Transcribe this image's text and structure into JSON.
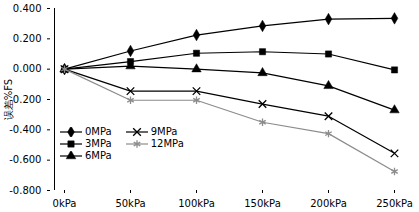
{
  "chart_data": {
    "type": "line",
    "y_label": "误差%FS",
    "categories": [
      "0kPa",
      "50kPa",
      "100kPa",
      "150kPa",
      "200kPa",
      "250kPa"
    ],
    "series": [
      {
        "name": "0MPa",
        "color": "#000000",
        "marker": "diamond",
        "values": [
          0,
          0.12,
          0.225,
          0.285,
          0.33,
          0.335
        ]
      },
      {
        "name": "3MPa",
        "color": "#000000",
        "marker": "square",
        "values": [
          0,
          0.05,
          0.105,
          0.115,
          0.1,
          -0.005
        ]
      },
      {
        "name": "6MPa",
        "color": "#000000",
        "marker": "triangle",
        "values": [
          0,
          0.02,
          0.0,
          -0.025,
          -0.11,
          -0.27
        ]
      },
      {
        "name": "9MPa",
        "color": "#000000",
        "marker": "times",
        "values": [
          0,
          -0.145,
          -0.145,
          -0.23,
          -0.31,
          -0.555
        ]
      },
      {
        "name": "12MPa",
        "color": "#8c8c8c",
        "marker": "asterisk",
        "values": [
          0,
          -0.205,
          -0.205,
          -0.35,
          -0.425,
          -0.675
        ]
      }
    ],
    "ylim": [
      -0.8,
      0.4
    ],
    "yticks": [
      {
        "value": -0.8,
        "label": "-0.800"
      },
      {
        "value": -0.6,
        "label": "-0.600"
      },
      {
        "value": -0.4,
        "label": "-0.400"
      },
      {
        "value": -0.2,
        "label": "-0.200"
      },
      {
        "value": 0,
        "label": "0.000"
      },
      {
        "value": 0.2,
        "label": "0.200"
      },
      {
        "value": 0.4,
        "label": "0.400"
      }
    ],
    "grid": false,
    "legend": "lower left"
  }
}
